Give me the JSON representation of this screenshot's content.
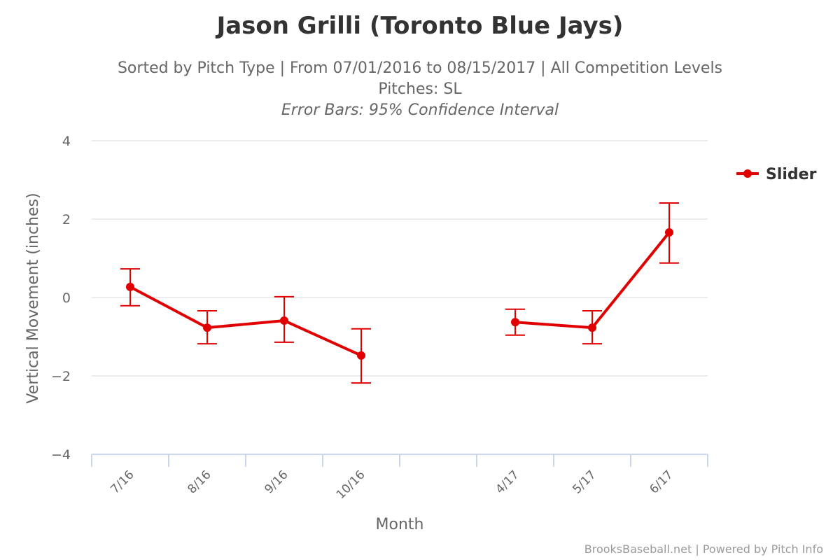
{
  "colors": {
    "series": "#e00000",
    "grid": "#e6e6e6",
    "axis": "#ccd6eb",
    "text": "#333333",
    "muted": "#666666"
  },
  "header": {
    "title": "Jason Grilli (Toronto Blue Jays)",
    "subtitle_line1": "Sorted by Pitch Type | From 07/01/2016 to 08/15/2017 | All Competition Levels",
    "subtitle_line2": "Pitches: SL",
    "subtitle_line3": "Error Bars: 95% Confidence Interval"
  },
  "credits": "BrooksBaseball.net | Powered by Pitch Info",
  "chart_data": {
    "type": "line",
    "title": "Jason Grilli (Toronto Blue Jays)",
    "xlabel": "Month",
    "ylabel": "Vertical Movement (inches)",
    "ylim": [
      -4,
      4
    ],
    "yticks": [
      "4",
      "2",
      "0",
      "−2",
      "−4"
    ],
    "ytick_values": [
      4,
      2,
      0,
      -2,
      -4
    ],
    "categories": [
      "7/16",
      "8/16",
      "9/16",
      "10/16",
      "",
      "4/17",
      "5/17",
      "6/17"
    ],
    "grid": true,
    "legend_position": "right",
    "series": [
      {
        "name": "Slider",
        "color": "#e00000",
        "values": [
          0.27,
          -0.77,
          -0.59,
          -1.48,
          null,
          -0.63,
          -0.77,
          1.66
        ],
        "error_high": [
          0.73,
          -0.34,
          0.02,
          -0.8,
          null,
          -0.3,
          -0.34,
          2.41
        ],
        "error_low": [
          -0.21,
          -1.18,
          -1.14,
          -2.18,
          null,
          -0.96,
          -1.18,
          0.88
        ]
      }
    ]
  }
}
